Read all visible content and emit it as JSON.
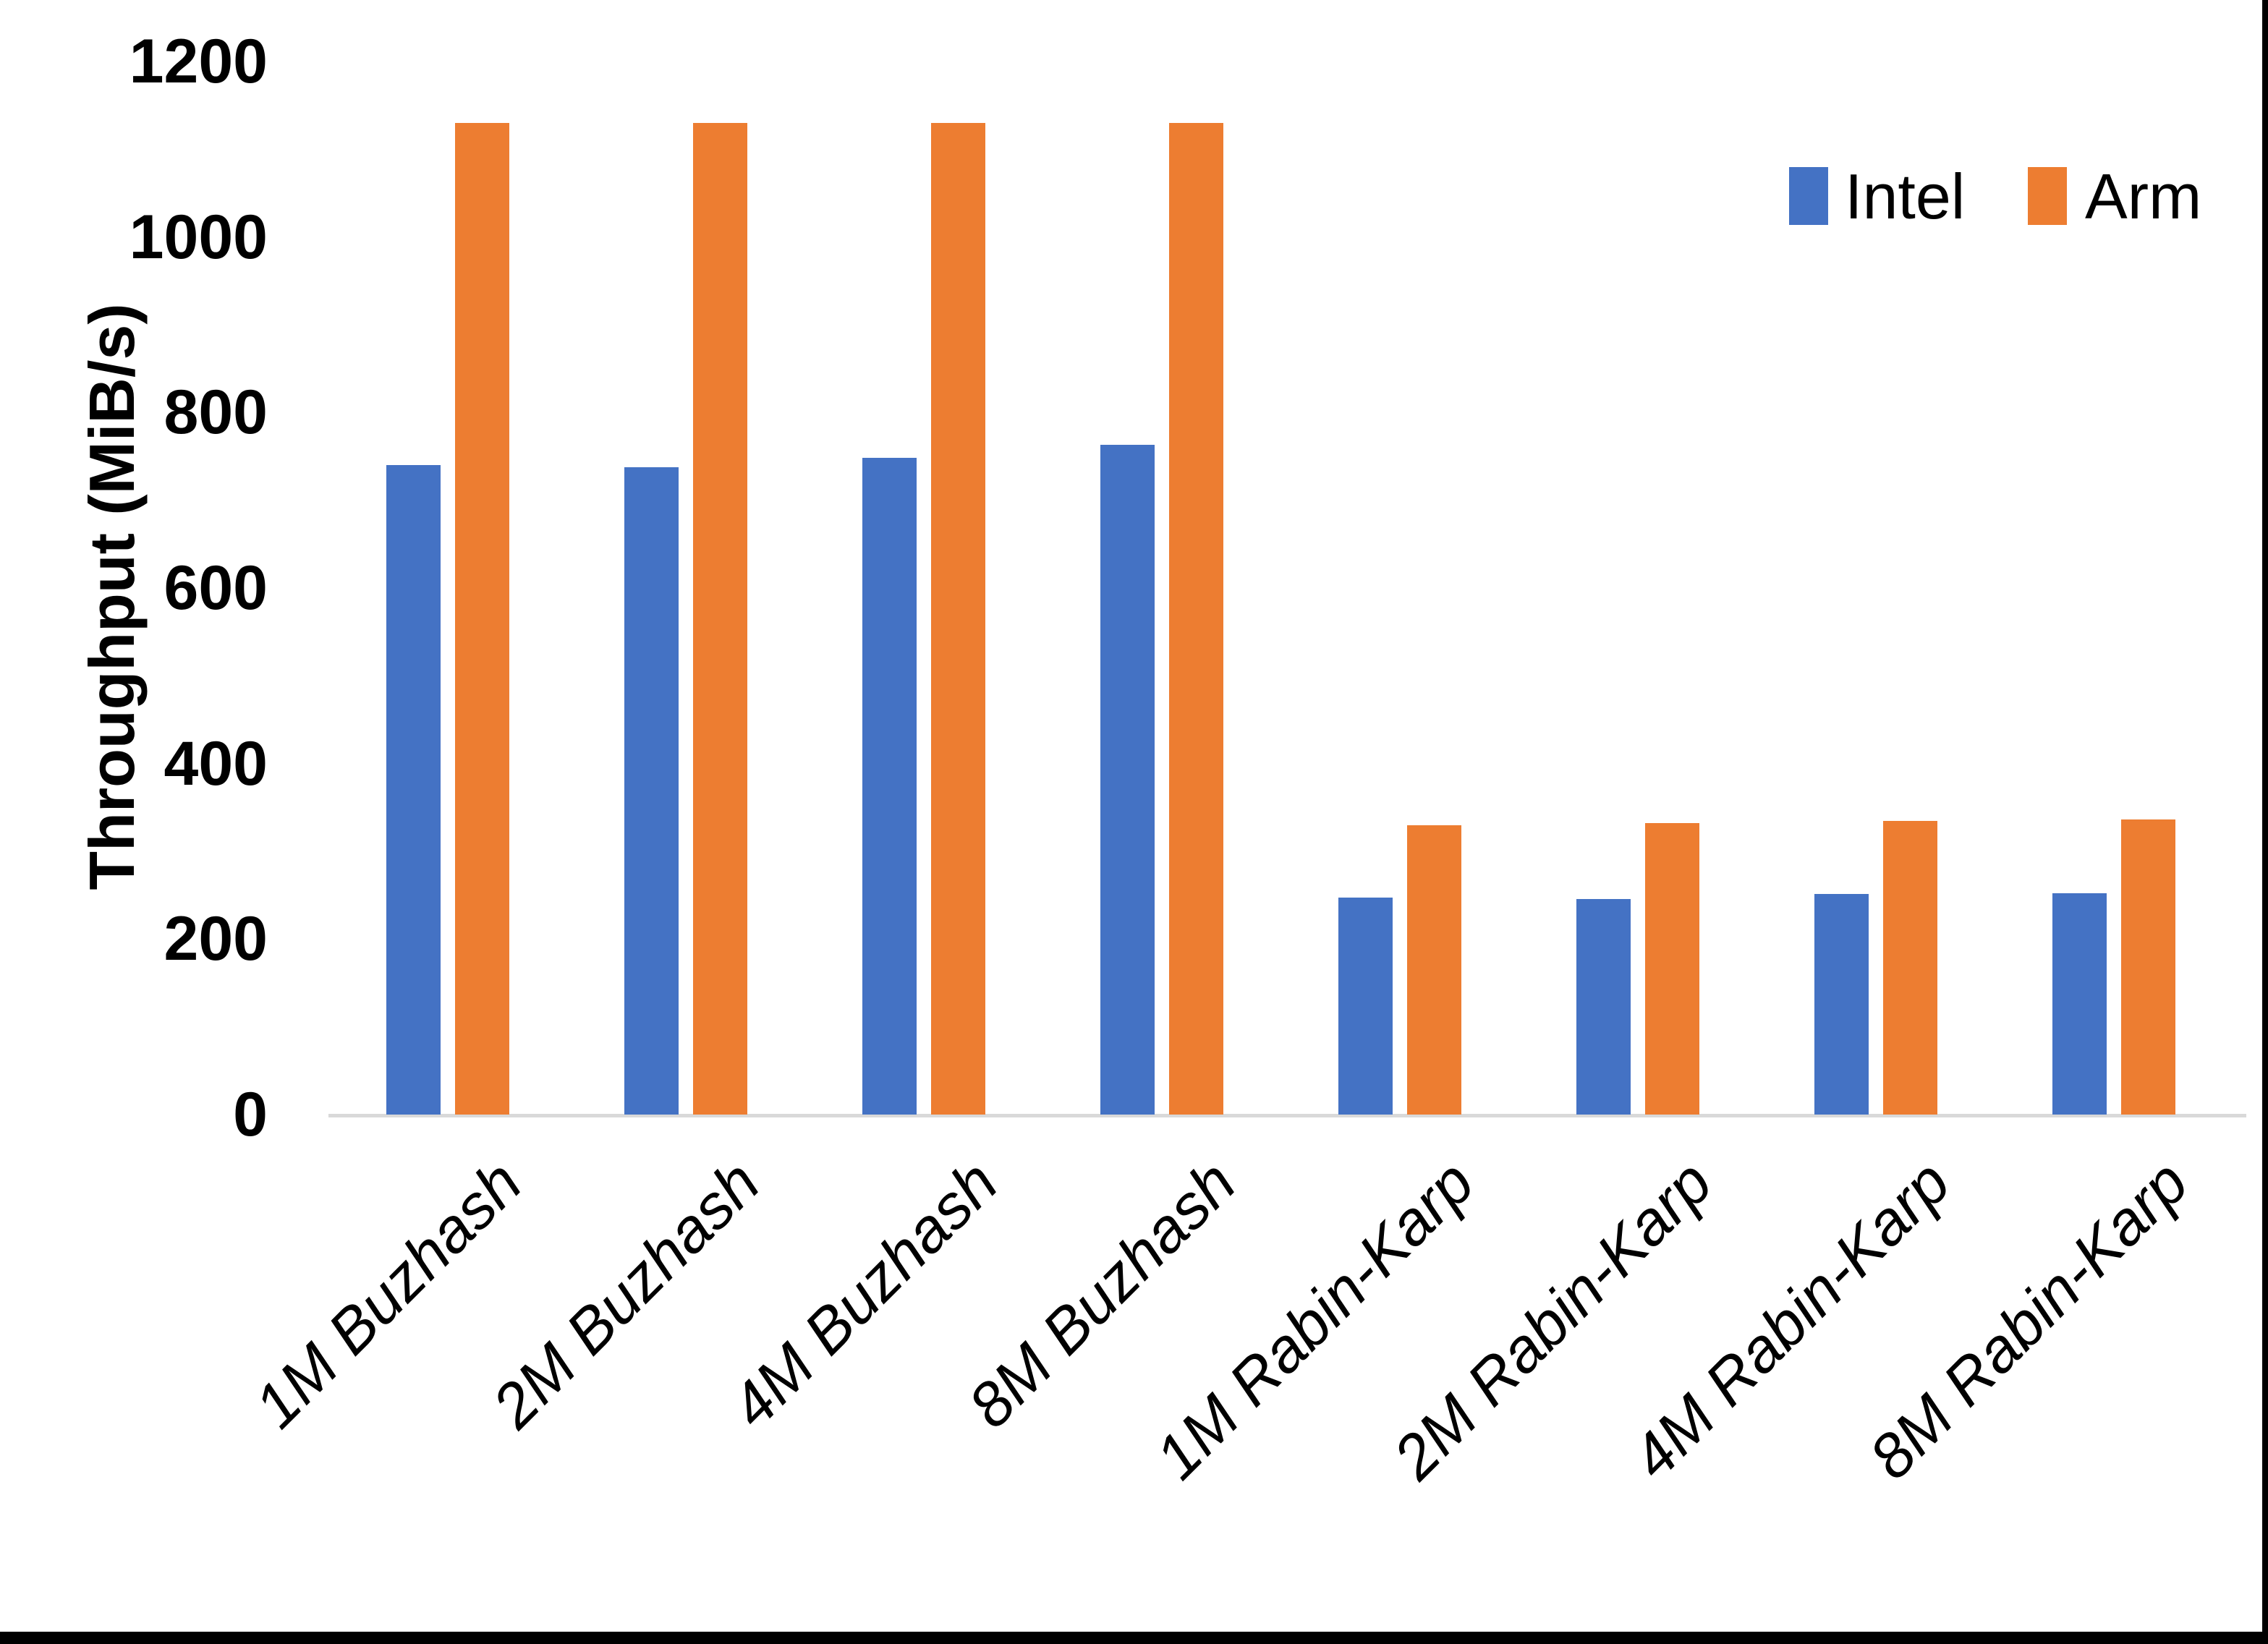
{
  "chart_data": {
    "type": "bar",
    "title": "",
    "ylabel": "Throughput (MiB/s)",
    "xlabel": "",
    "categories": [
      "1M Buzhash",
      "2M Buzhash",
      "4M Buzhash",
      "8M Buzhash",
      "1M Rabin-Karp",
      "2M Rabin-Karp",
      "4M Rabin-Karp",
      "8M Rabin-Karp"
    ],
    "series": [
      {
        "name": "Intel",
        "color": "#4472C4",
        "values": [
          740,
          738,
          748,
          763,
          247,
          246,
          251,
          252
        ]
      },
      {
        "name": "Arm",
        "color": "#ED7D31",
        "values": [
          1130,
          1130,
          1130,
          1130,
          330,
          332,
          335,
          336
        ]
      }
    ],
    "ylim": [
      0,
      1200
    ],
    "yticks": [
      0,
      200,
      400,
      600,
      800,
      1000,
      1200
    ],
    "grid": false,
    "legend_position": "top-right",
    "bar_orientation": "vertical"
  },
  "colors": {
    "intel": "#4472C4",
    "arm": "#ED7D31",
    "axis_line": "#D9D9D9",
    "text": "#000000",
    "background": "#FFFFFF",
    "window_border": "#000000"
  }
}
